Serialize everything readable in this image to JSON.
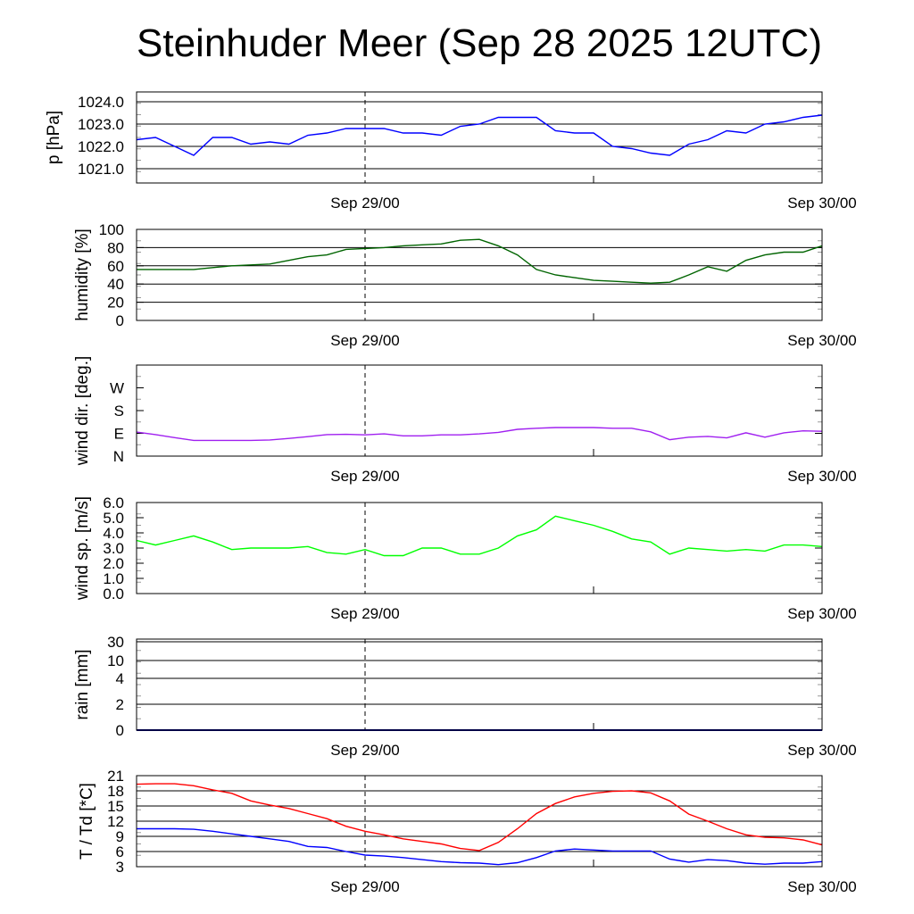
{
  "chart_data": {
    "title": "Steinhuder Meer (Sep 28 2025 12UTC)",
    "x_unit": "hours since Sep 28 12UTC",
    "x_range": [
      0,
      36
    ],
    "x_ticks": [
      {
        "hour": 12,
        "label": "Sep 29/00"
      },
      {
        "hour": 36,
        "label": "Sep 30/00"
      }
    ],
    "hours": [
      0,
      1,
      2,
      3,
      4,
      5,
      6,
      7,
      8,
      9,
      10,
      11,
      12,
      13,
      14,
      15,
      16,
      17,
      18,
      19,
      20,
      21,
      22,
      23,
      24,
      25,
      26,
      27,
      28,
      29,
      30,
      31,
      32,
      33,
      34,
      35,
      36
    ],
    "panels": [
      {
        "id": "pressure",
        "type": "line",
        "ylabel": "p [hPa]",
        "ylim": [
          1020.36,
          1024.44
        ],
        "yticks": [
          {
            "v": 1024,
            "label": "1024.0"
          },
          {
            "v": 1023,
            "label": "1023.0"
          },
          {
            "v": 1022,
            "label": "1022.0"
          },
          {
            "v": 1021,
            "label": "1021.0"
          }
        ],
        "grid": [
          1021,
          1022,
          1023,
          1024
        ],
        "series": [
          {
            "name": "pressure",
            "color": "#0000ff",
            "values": [
              1022.3,
              1022.4,
              1022.0,
              1021.6,
              1022.4,
              1022.4,
              1022.1,
              1022.2,
              1022.1,
              1022.5,
              1022.6,
              1022.8,
              1022.8,
              1022.8,
              1022.6,
              1022.6,
              1022.5,
              1022.9,
              1023.0,
              1023.3,
              1023.3,
              1023.3,
              1022.7,
              1022.6,
              1022.6,
              1022.0,
              1021.9,
              1021.7,
              1021.6,
              1022.1,
              1022.3,
              1022.7,
              1022.6,
              1023.0,
              1023.1,
              1023.3,
              1023.4
            ]
          }
        ]
      },
      {
        "id": "humidity",
        "type": "line",
        "ylabel": "humidity [%]",
        "ylim": [
          0,
          100
        ],
        "yticks": [
          {
            "v": 100,
            "label": "100"
          },
          {
            "v": 80,
            "label": "80"
          },
          {
            "v": 60,
            "label": "60"
          },
          {
            "v": 40,
            "label": "40"
          },
          {
            "v": 20,
            "label": "20"
          },
          {
            "v": 0,
            "label": "0"
          }
        ],
        "grid": [
          20,
          40,
          60,
          80
        ],
        "series": [
          {
            "name": "humidity",
            "color": "#006400",
            "values": [
              56,
              56,
              56,
              56,
              58,
              60,
              61,
              62,
              66,
              70,
              72,
              78,
              79,
              80,
              82,
              83,
              84,
              88,
              89,
              82,
              72,
              56,
              50,
              47,
              44,
              43,
              42,
              41,
              42,
              50,
              59,
              54,
              66,
              72,
              75,
              75,
              82
            ]
          }
        ]
      },
      {
        "id": "wind_dir",
        "type": "line",
        "ylabel": "wind dir. [deg.]",
        "ylim": [
          0,
          360
        ],
        "yticks": [
          {
            "v": 270,
            "label": "W"
          },
          {
            "v": 180,
            "label": "S"
          },
          {
            "v": 90,
            "label": "E"
          },
          {
            "v": 0,
            "label": "N"
          }
        ],
        "grid": [],
        "series": [
          {
            "name": "wind direction",
            "color": "#a020f0",
            "values": [
              95,
              85,
              73,
              62,
              62,
              62,
              62,
              64,
              70,
              77,
              85,
              86,
              84,
              88,
              80,
              80,
              84,
              84,
              88,
              94,
              106,
              110,
              113,
              113,
              113,
              110,
              110,
              96,
              65,
              75,
              78,
              72,
              92,
              75,
              92,
              100,
              98
            ]
          }
        ]
      },
      {
        "id": "wind_speed",
        "type": "line",
        "ylabel": "wind sp. [m/s]",
        "ylim": [
          0,
          6
        ],
        "yticks": [
          {
            "v": 6,
            "label": "6.0"
          },
          {
            "v": 5,
            "label": "5.0"
          },
          {
            "v": 4,
            "label": "4.0"
          },
          {
            "v": 3,
            "label": "3.0"
          },
          {
            "v": 2,
            "label": "2.0"
          },
          {
            "v": 1,
            "label": "1.0"
          },
          {
            "v": 0,
            "label": "0.0"
          }
        ],
        "grid": [],
        "series": [
          {
            "name": "wind speed",
            "color": "#00ff00",
            "values": [
              3.5,
              3.2,
              3.5,
              3.8,
              3.4,
              2.9,
              3.0,
              3.0,
              3.0,
              3.1,
              2.7,
              2.6,
              2.9,
              2.5,
              2.5,
              3.0,
              3.0,
              2.6,
              2.6,
              3.0,
              3.8,
              4.2,
              5.1,
              4.8,
              4.5,
              4.1,
              3.6,
              3.4,
              2.6,
              3.0,
              2.9,
              2.8,
              2.9,
              2.8,
              3.2,
              3.2,
              3.1
            ]
          }
        ]
      },
      {
        "id": "rain",
        "type": "line",
        "ylabel": "rain [mm]",
        "ylim": [
          0,
          30
        ],
        "yticks": [
          {
            "v": 30,
            "label": "30"
          },
          {
            "v": 10,
            "label": "10"
          },
          {
            "v": 4,
            "label": "4"
          },
          {
            "v": 2,
            "label": "2"
          },
          {
            "v": 0,
            "label": "0"
          }
        ],
        "grid": [
          2,
          4,
          10,
          30
        ],
        "series": [
          {
            "name": "rain",
            "color": "#00008b",
            "values": [
              0,
              0,
              0,
              0,
              0,
              0,
              0,
              0,
              0,
              0,
              0,
              0,
              0,
              0,
              0,
              0,
              0,
              0,
              0,
              0,
              0,
              0,
              0,
              0,
              0,
              0,
              0,
              0,
              0,
              0,
              0,
              0,
              0,
              0,
              0,
              0,
              0
            ]
          }
        ]
      },
      {
        "id": "temp",
        "type": "line",
        "ylabel": "T / Td [*C]",
        "ylim": [
          3,
          21
        ],
        "yticks": [
          {
            "v": 21,
            "label": "21"
          },
          {
            "v": 18,
            "label": "18"
          },
          {
            "v": 15,
            "label": "15"
          },
          {
            "v": 12,
            "label": "12"
          },
          {
            "v": 9,
            "label": "9"
          },
          {
            "v": 6,
            "label": "6"
          },
          {
            "v": 3,
            "label": "3"
          }
        ],
        "grid": [
          6,
          9,
          12,
          15,
          18
        ],
        "series": [
          {
            "name": "T",
            "color": "#ff0000",
            "values": [
              19.3,
              19.4,
              19.4,
              19.0,
              18.2,
              17.5,
              16.0,
              15.2,
              14.5,
              13.5,
              12.5,
              11.0,
              10.0,
              9.3,
              8.5,
              8.0,
              7.5,
              6.6,
              6.2,
              7.8,
              10.5,
              13.5,
              15.5,
              16.8,
              17.5,
              17.9,
              18.0,
              17.6,
              16.0,
              13.4,
              12.0,
              10.5,
              9.3,
              8.8,
              8.7,
              8.3,
              7.3
            ]
          },
          {
            "name": "Td",
            "color": "#0000ff",
            "values": [
              10.5,
              10.5,
              10.5,
              10.4,
              10.0,
              9.5,
              9.0,
              8.5,
              8.0,
              7.0,
              6.8,
              6.0,
              5.3,
              5.1,
              4.8,
              4.4,
              4.0,
              3.8,
              3.7,
              3.4,
              3.8,
              4.8,
              6.1,
              6.5,
              6.3,
              6.1,
              6.1,
              6.1,
              4.5,
              3.9,
              4.4,
              4.2,
              3.7,
              3.5,
              3.7,
              3.7,
              4.0
            ]
          }
        ]
      }
    ]
  }
}
